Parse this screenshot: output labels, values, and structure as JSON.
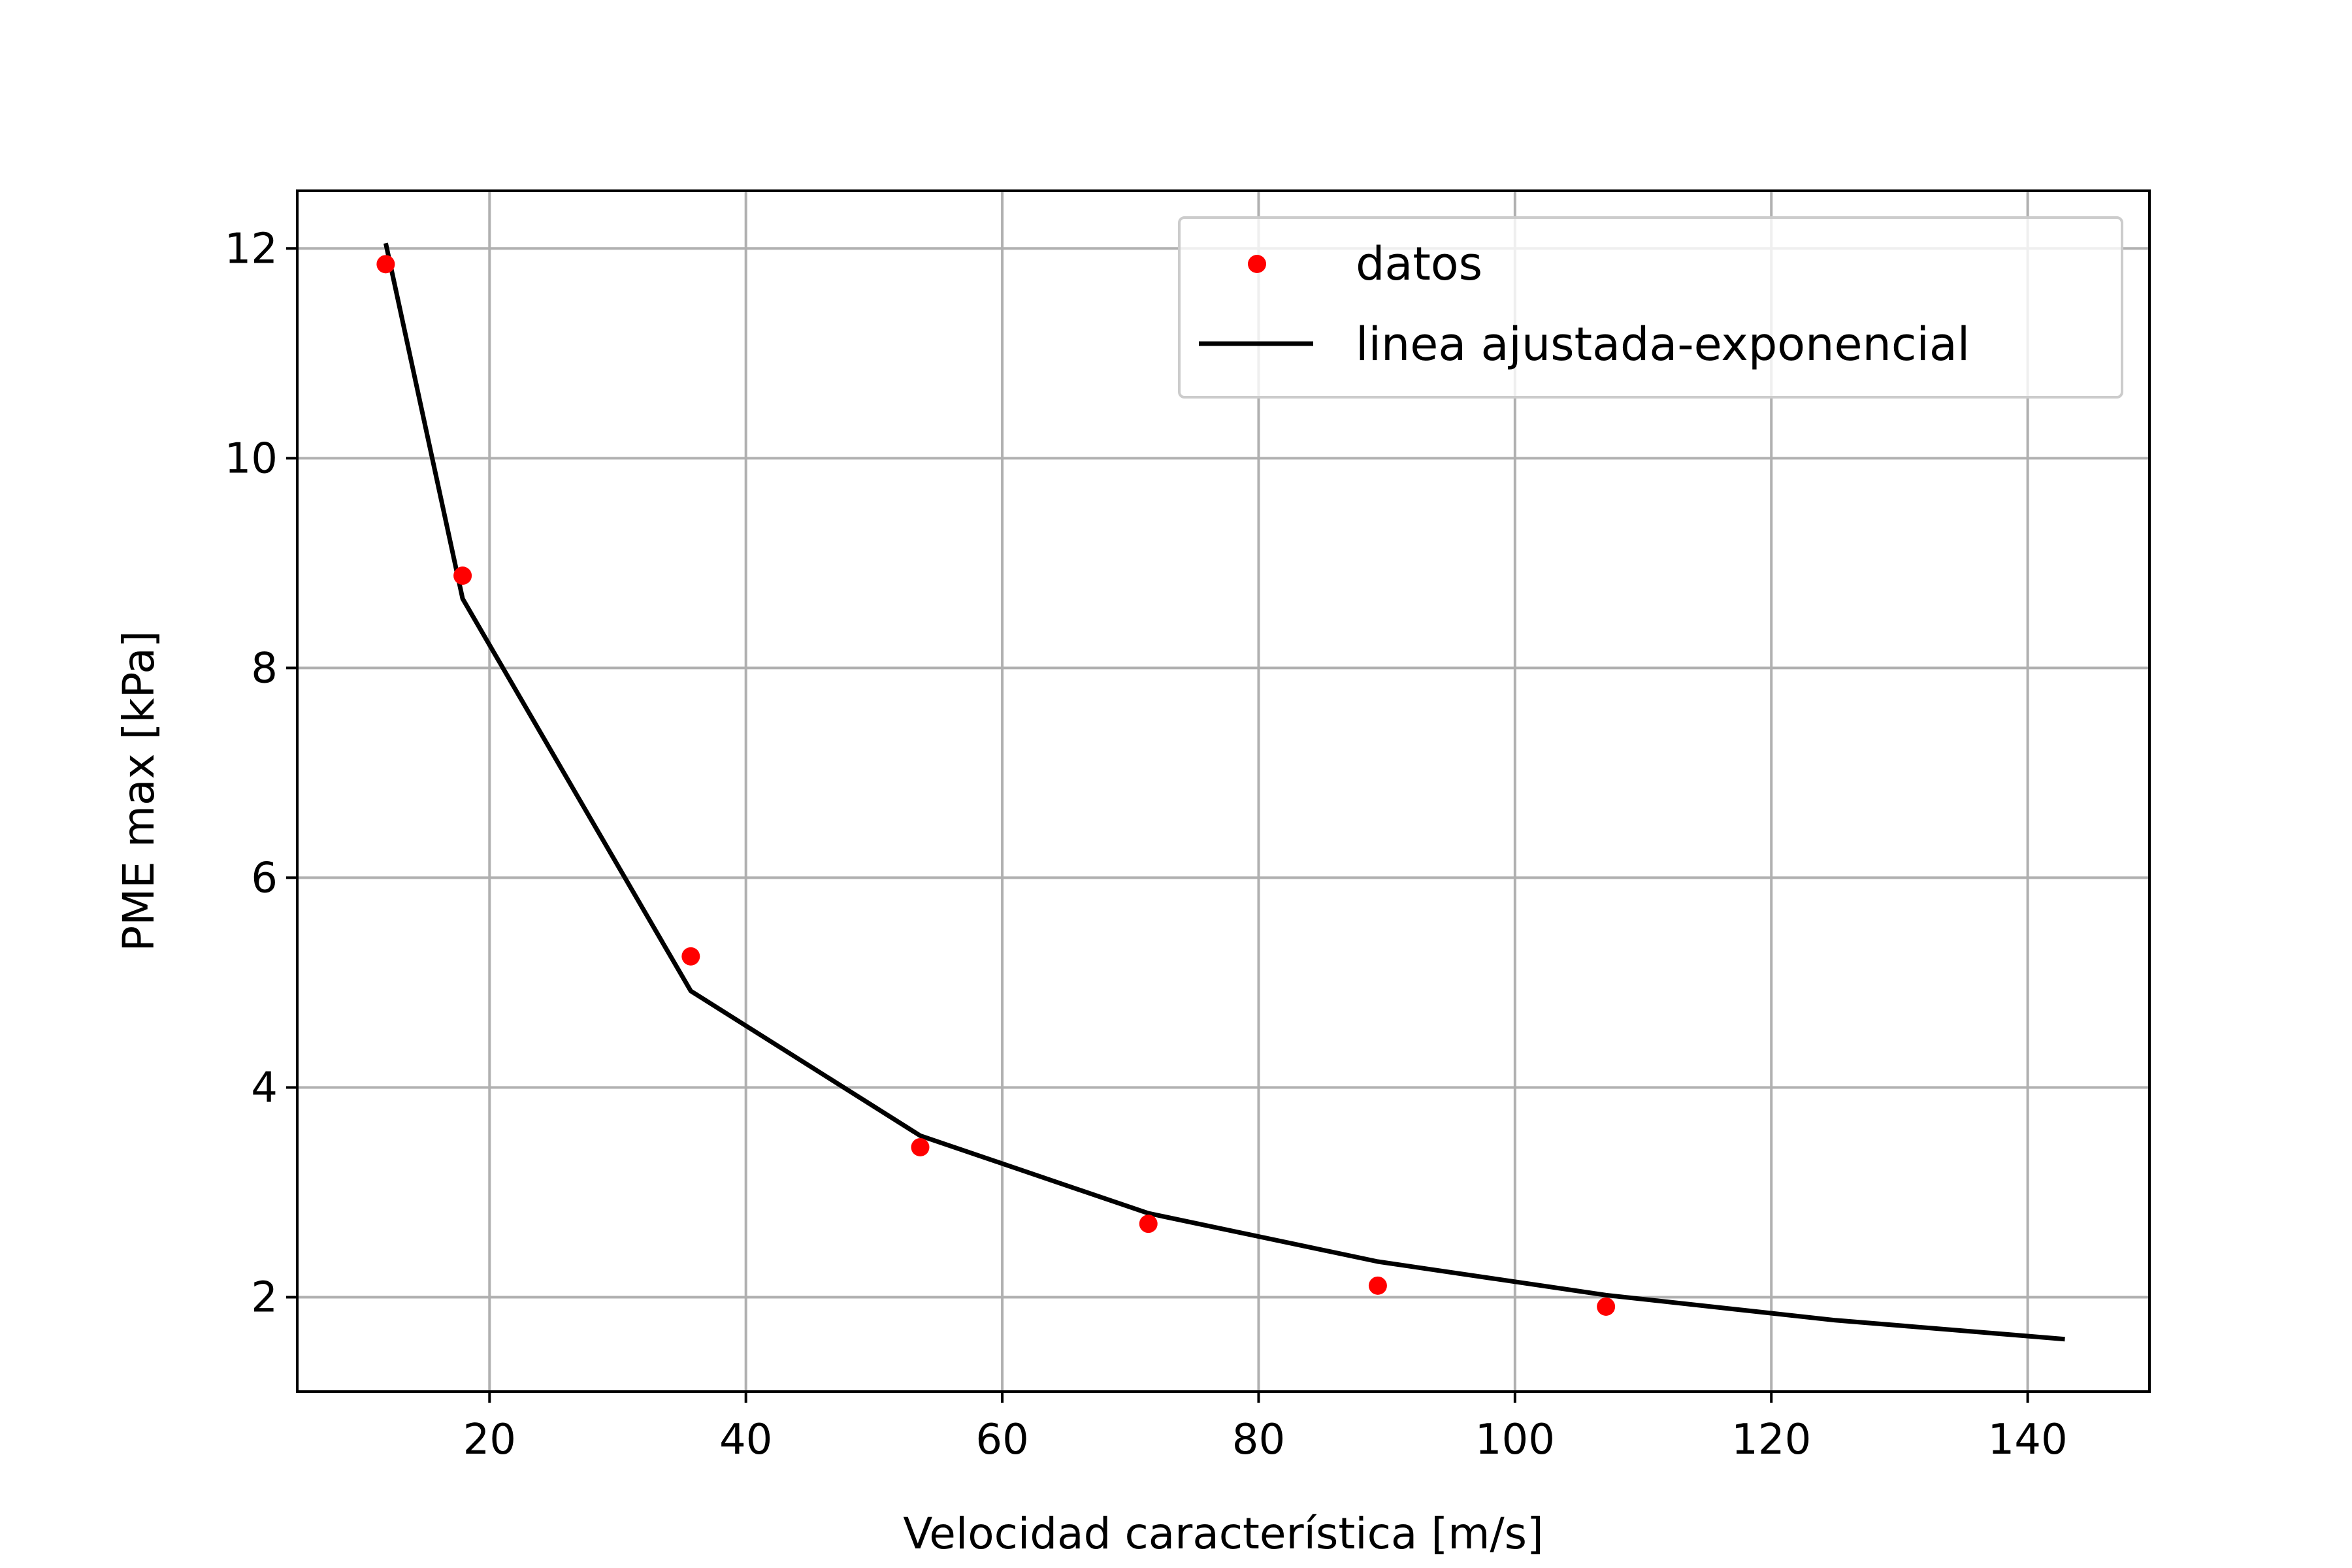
{
  "chart_data": {
    "type": "line",
    "title": "",
    "xlabel": "Velocidad característica [m/s]",
    "ylabel": "PME max [kPa]",
    "xlim": [
      5,
      149.5
    ],
    "ylim": [
      1.1,
      12.55
    ],
    "xticks": [
      20,
      40,
      60,
      80,
      100,
      120,
      140
    ],
    "yticks": [
      2,
      4,
      6,
      8,
      10,
      12
    ],
    "grid": true,
    "legend_position": "top-right",
    "series": [
      {
        "name": "datos",
        "kind": "scatter",
        "color": "#ff0000",
        "x": [
          11.9,
          17.9,
          35.7,
          53.6,
          71.4,
          89.3,
          107.1
        ],
        "y": [
          11.85,
          8.88,
          5.25,
          3.43,
          2.7,
          2.11,
          1.91
        ]
      },
      {
        "name": "linea ajustada-exponencial",
        "kind": "line",
        "color": "#000000",
        "x": [
          11.9,
          17.9,
          35.7,
          53.6,
          71.4,
          89.3,
          107.1,
          125.0,
          142.9
        ],
        "y": [
          12.05,
          8.66,
          4.92,
          3.54,
          2.8,
          2.34,
          2.02,
          1.78,
          1.6
        ]
      }
    ]
  }
}
